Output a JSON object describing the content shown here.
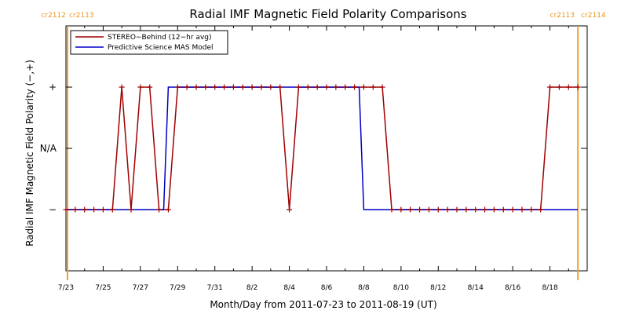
{
  "chart_data": {
    "type": "line",
    "title": "Radial IMF Magnetic Field Polarity Comparisons",
    "xlabel": "Month/Day from 2011-07-23 to 2011-08-19 (UT)",
    "ylabel": "Radial IMF Magnetic Field Polarity (−,+)",
    "x_ticks": [
      "7/23",
      "7/25",
      "7/27",
      "7/29",
      "7/31",
      "8/2",
      "8/4",
      "8/6",
      "8/8",
      "8/10",
      "8/12",
      "8/14",
      "8/16",
      "8/18"
    ],
    "y_ticks": [
      "+",
      "N/A",
      "−"
    ],
    "xlim": [
      "2011-07-23T00:00",
      "2011-08-20T00:00"
    ],
    "ylim": [
      -2,
      2
    ],
    "carrington_rotations": [
      {
        "left": "cr2112",
        "right": "cr2113",
        "date": "2011-07-23T00:00"
      },
      {
        "left": "cr2113",
        "right": "cr2114",
        "date": "2011-08-19T12:00"
      }
    ],
    "legend": {
      "placement": "top-left"
    },
    "series": [
      {
        "name": "STEREO−Behind (12−hr avg)",
        "color": "#a00000",
        "markers": true,
        "points": [
          [
            "2011-07-23T00:00",
            -1
          ],
          [
            "2011-07-23T12:00",
            -1
          ],
          [
            "2011-07-24T00:00",
            -1
          ],
          [
            "2011-07-24T12:00",
            -1
          ],
          [
            "2011-07-25T00:00",
            -1
          ],
          [
            "2011-07-25T12:00",
            -1
          ],
          [
            "2011-07-26T00:00",
            1
          ],
          [
            "2011-07-26T12:00",
            -1
          ],
          [
            "2011-07-27T00:00",
            1
          ],
          [
            "2011-07-27T12:00",
            1
          ],
          [
            "2011-07-28T00:00",
            -1
          ],
          [
            "2011-07-28T12:00",
            -1
          ],
          [
            "2011-07-29T00:00",
            1
          ],
          [
            "2011-07-29T12:00",
            1
          ],
          [
            "2011-07-30T00:00",
            1
          ],
          [
            "2011-07-30T12:00",
            1
          ],
          [
            "2011-07-31T00:00",
            1
          ],
          [
            "2011-07-31T12:00",
            1
          ],
          [
            "2011-08-01T00:00",
            1
          ],
          [
            "2011-08-01T12:00",
            1
          ],
          [
            "2011-08-02T00:00",
            1
          ],
          [
            "2011-08-02T12:00",
            1
          ],
          [
            "2011-08-03T00:00",
            1
          ],
          [
            "2011-08-03T12:00",
            1
          ],
          [
            "2011-08-04T00:00",
            -1
          ],
          [
            "2011-08-04T12:00",
            1
          ],
          [
            "2011-08-05T00:00",
            1
          ],
          [
            "2011-08-05T12:00",
            1
          ],
          [
            "2011-08-06T00:00",
            1
          ],
          [
            "2011-08-06T12:00",
            1
          ],
          [
            "2011-08-07T00:00",
            1
          ],
          [
            "2011-08-07T12:00",
            1
          ],
          [
            "2011-08-08T00:00",
            1
          ],
          [
            "2011-08-08T12:00",
            1
          ],
          [
            "2011-08-09T00:00",
            1
          ],
          [
            "2011-08-09T12:00",
            -1
          ],
          [
            "2011-08-10T00:00",
            -1
          ],
          [
            "2011-08-10T12:00",
            -1
          ],
          [
            "2011-08-11T00:00",
            -1
          ],
          [
            "2011-08-11T12:00",
            -1
          ],
          [
            "2011-08-12T00:00",
            -1
          ],
          [
            "2011-08-12T12:00",
            -1
          ],
          [
            "2011-08-13T00:00",
            -1
          ],
          [
            "2011-08-13T12:00",
            -1
          ],
          [
            "2011-08-14T00:00",
            -1
          ],
          [
            "2011-08-14T12:00",
            -1
          ],
          [
            "2011-08-15T00:00",
            -1
          ],
          [
            "2011-08-15T12:00",
            -1
          ],
          [
            "2011-08-16T00:00",
            -1
          ],
          [
            "2011-08-16T12:00",
            -1
          ],
          [
            "2011-08-17T00:00",
            -1
          ],
          [
            "2011-08-17T12:00",
            -1
          ],
          [
            "2011-08-18T00:00",
            1
          ],
          [
            "2011-08-18T12:00",
            1
          ],
          [
            "2011-08-19T00:00",
            1
          ],
          [
            "2011-08-19T12:00",
            1
          ]
        ]
      },
      {
        "name": "Predictive Science MAS Model",
        "color": "#0000c8",
        "markers": false,
        "points": [
          [
            "2011-07-23T00:00",
            -1
          ],
          [
            "2011-07-28T06:00",
            -1
          ],
          [
            "2011-07-28T12:00",
            1
          ],
          [
            "2011-08-07T18:00",
            1
          ],
          [
            "2011-08-08T00:00",
            -1
          ],
          [
            "2011-08-19T12:00",
            -1
          ]
        ]
      }
    ]
  }
}
